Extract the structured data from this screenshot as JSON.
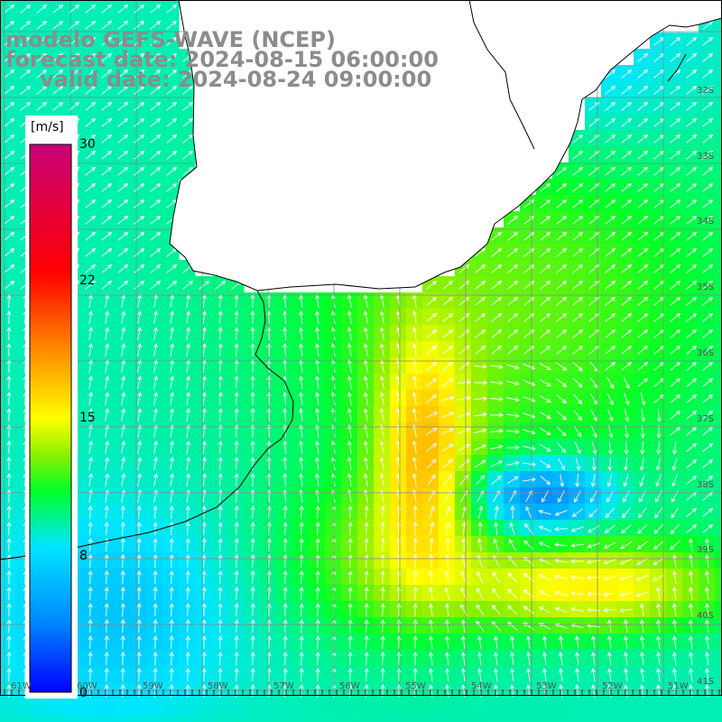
{
  "header": {
    "line1": "modelo GEFS-WAVE (NCEP)",
    "line2": "forecast date: 2024-08-15 06:00:00",
    "line3": "valid date: 2024-08-24 09:00:00"
  },
  "colorbar": {
    "unit": "[m/s]",
    "min": 0,
    "max": 30,
    "ticks": [
      "30",
      "22",
      "15",
      "8",
      "0"
    ],
    "tick_values": [
      30,
      22,
      15,
      8,
      0
    ]
  },
  "axes": {
    "lat_labels": [
      "32S",
      "33S",
      "34S",
      "35S",
      "36S",
      "37S",
      "38S",
      "39S",
      "40S",
      "41S"
    ],
    "lon_labels": [
      "61W",
      "60W",
      "59W",
      "58W",
      "57W",
      "56W",
      "55W",
      "54W",
      "53W",
      "52W",
      "51W"
    ]
  },
  "colors": {
    "land": "#ffffff",
    "grid": "#888888",
    "coast": "#000000",
    "vectors": "#ffffff",
    "title": "#8c8c8c"
  }
}
